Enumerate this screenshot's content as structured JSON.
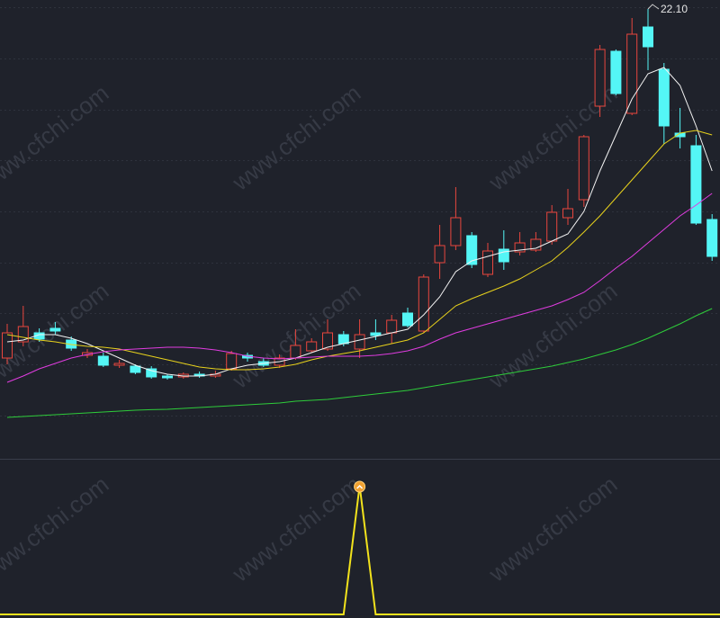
{
  "chart_data": {
    "type": "candlestick",
    "annotation": "22.10",
    "watermark": "www.cfchi.com",
    "ylim": [
      8.3,
      22.4
    ],
    "up_color": "#e8463e",
    "down_color": "#54f6f6",
    "open": [
      10.46,
      11.0,
      11.3,
      11.45,
      11.06,
      10.55,
      10.52,
      10.22,
      10.19,
      10.1,
      9.86,
      9.83,
      9.92,
      9.86,
      10.1,
      10.55,
      10.34,
      10.22,
      10.46,
      10.7,
      10.76,
      11.24,
      10.76,
      11.3,
      11.3,
      11.96,
      11.36,
      13.64,
      14.21,
      14.54,
      13.25,
      14.09,
      14.0,
      14.06,
      14.36,
      15.14,
      15.74,
      18.86,
      20.69,
      18.62,
      21.5,
      20.09,
      17.96,
      17.54,
      15.08
    ],
    "close": [
      11.3,
      11.51,
      11.09,
      11.36,
      10.79,
      10.64,
      10.22,
      10.28,
      9.98,
      9.83,
      9.8,
      9.92,
      9.86,
      9.92,
      10.61,
      10.46,
      10.22,
      10.46,
      10.88,
      11.0,
      11.3,
      10.94,
      11.24,
      11.21,
      11.72,
      11.54,
      13.16,
      14.21,
      15.14,
      13.58,
      14.03,
      13.67,
      14.3,
      14.42,
      15.32,
      15.44,
      17.84,
      20.75,
      19.28,
      21.26,
      20.84,
      18.2,
      17.84,
      14.96,
      13.85
    ],
    "high": [
      11.6,
      12.2,
      11.45,
      11.66,
      11.18,
      10.76,
      10.64,
      10.4,
      10.25,
      10.19,
      9.92,
      9.98,
      10.01,
      10.04,
      10.7,
      10.64,
      10.46,
      10.58,
      11.42,
      11.12,
      11.75,
      11.36,
      11.75,
      11.75,
      11.9,
      12.14,
      13.25,
      14.9,
      16.16,
      14.66,
      14.3,
      14.72,
      14.66,
      14.66,
      15.56,
      16.1,
      17.9,
      20.9,
      20.75,
      21.8,
      22.1,
      20.3,
      18.8,
      17.9,
      15.26
    ],
    "low": [
      10.25,
      10.85,
      11.0,
      11.24,
      10.7,
      10.46,
      10.16,
      10.13,
      9.92,
      9.77,
      9.74,
      9.77,
      9.8,
      9.8,
      10.04,
      10.34,
      10.16,
      10.13,
      10.4,
      10.64,
      10.7,
      10.85,
      10.46,
      11.06,
      10.94,
      11.48,
      11.3,
      13.1,
      14.06,
      13.46,
      13.16,
      13.4,
      13.88,
      14.0,
      14.24,
      14.9,
      15.5,
      18.5,
      19.22,
      18.56,
      20.06,
      17.6,
      17.45,
      14.9,
      13.7
    ],
    "series": [
      {
        "color": "#f2f2f2",
        "values": [
          11.0,
          11.06,
          11.24,
          11.24,
          11.12,
          10.94,
          10.7,
          10.46,
          10.22,
          10.04,
          9.92,
          9.86,
          9.86,
          9.92,
          10.1,
          10.22,
          10.28,
          10.34,
          10.46,
          10.64,
          10.82,
          10.94,
          11.06,
          11.18,
          11.3,
          11.42,
          11.9,
          12.5,
          13.34,
          13.7,
          13.85,
          14.0,
          14.06,
          14.12,
          14.36,
          14.6,
          15.35,
          16.7,
          17.9,
          19.1,
          19.94,
          20.15,
          19.55,
          18.2,
          16.7
        ]
      },
      {
        "color": "#e8d21c",
        "values": [
          11.24,
          11.15,
          11.06,
          11.0,
          10.91,
          10.85,
          10.82,
          10.76,
          10.64,
          10.52,
          10.4,
          10.28,
          10.16,
          10.1,
          10.07,
          10.07,
          10.1,
          10.16,
          10.25,
          10.4,
          10.52,
          10.61,
          10.7,
          10.82,
          10.94,
          11.06,
          11.3,
          11.75,
          12.2,
          12.44,
          12.65,
          12.86,
          13.1,
          13.4,
          13.7,
          14.15,
          14.66,
          15.2,
          15.8,
          16.4,
          17.0,
          17.6,
          17.96,
          18.05,
          17.9
        ]
      },
      {
        "color": "#e03ce0",
        "values": [
          9.65,
          9.86,
          10.1,
          10.28,
          10.46,
          10.58,
          10.67,
          10.73,
          10.76,
          10.79,
          10.82,
          10.82,
          10.79,
          10.73,
          10.64,
          10.52,
          10.46,
          10.43,
          10.46,
          10.49,
          10.52,
          10.52,
          10.52,
          10.55,
          10.61,
          10.7,
          10.85,
          11.09,
          11.3,
          11.45,
          11.6,
          11.75,
          11.9,
          12.05,
          12.2,
          12.41,
          12.65,
          13.04,
          13.46,
          13.85,
          14.3,
          14.75,
          15.2,
          15.56,
          15.95
        ]
      },
      {
        "color": "#2ecc3a",
        "values": [
          8.48,
          8.51,
          8.54,
          8.57,
          8.6,
          8.63,
          8.66,
          8.69,
          8.72,
          8.74,
          8.75,
          8.78,
          8.81,
          8.84,
          8.87,
          8.9,
          8.93,
          8.96,
          9.02,
          9.05,
          9.08,
          9.14,
          9.2,
          9.26,
          9.32,
          9.38,
          9.47,
          9.56,
          9.65,
          9.74,
          9.83,
          9.92,
          10.01,
          10.1,
          10.19,
          10.31,
          10.43,
          10.58,
          10.73,
          10.91,
          11.12,
          11.36,
          11.6,
          11.87,
          12.11
        ]
      }
    ],
    "indicator": {
      "color": "#f2e21c",
      "ylim": [
        0,
        1
      ],
      "values": [
        0,
        0,
        0,
        0,
        0,
        0,
        0,
        0,
        0,
        0,
        0,
        0,
        0,
        0,
        0,
        0,
        0,
        0,
        0,
        0,
        0,
        0,
        1,
        0,
        0,
        0,
        0,
        0,
        0,
        0,
        0,
        0,
        0,
        0,
        0,
        0,
        0,
        0,
        0,
        0,
        0,
        0,
        0,
        0,
        0
      ]
    }
  }
}
